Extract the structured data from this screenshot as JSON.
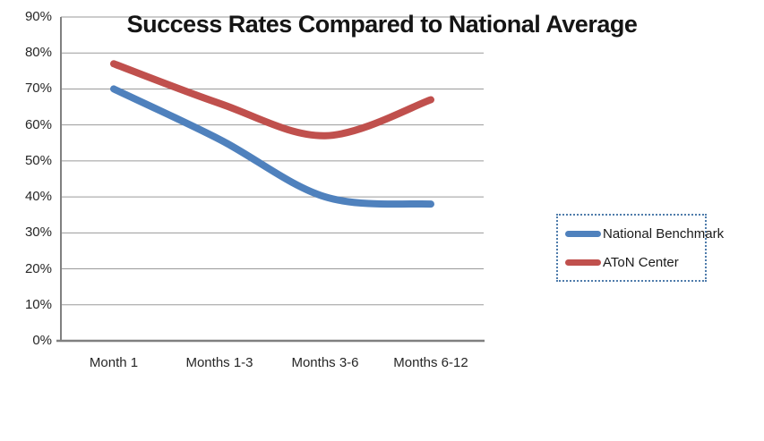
{
  "title": "Success Rates Compared to National Average",
  "colors": {
    "series_blue": "#4F81BD",
    "series_red": "#C0504D",
    "gridline": "#9a9a9a",
    "axis": "#808080",
    "legend_border": "#4f7cab",
    "text": "#262626",
    "background": "#ffffff"
  },
  "chart_data": {
    "type": "line",
    "categories": [
      "Month 1",
      "Months 1-3",
      "Months 3-6",
      "Months 6-12"
    ],
    "series": [
      {
        "name": "National Benchmark",
        "color": "#4F81BD",
        "values": [
          70,
          56,
          40,
          38
        ]
      },
      {
        "name": "AToN Center",
        "color": "#C0504D",
        "values": [
          77,
          66,
          57,
          67
        ]
      }
    ],
    "title": "Success Rates Compared to National Average",
    "xlabel": "",
    "ylabel": "",
    "ylim": [
      0,
      90
    ],
    "ytick_step": 10,
    "ytick_labels": [
      "0%",
      "10%",
      "20%",
      "30%",
      "40%",
      "50%",
      "60%",
      "70%",
      "80%",
      "90%"
    ],
    "grid": true,
    "legend_position": "right",
    "line_style": "smoothed"
  },
  "legend": {
    "items": [
      {
        "label": "National Benchmark",
        "color": "#4F81BD"
      },
      {
        "label": "AToN Center",
        "color": "#C0504D"
      }
    ]
  }
}
